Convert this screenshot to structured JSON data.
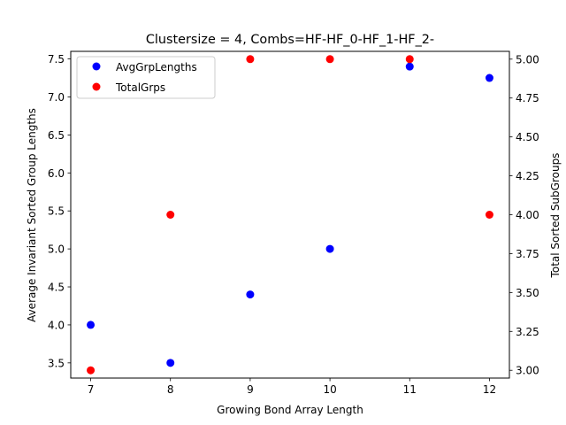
{
  "chart_data": {
    "type": "scatter",
    "title": "Clustersize = 4, Combs=HF-HF_0-HF_1-HF_2-",
    "xlabel": "Growing Bond Array Length",
    "ylabel": "Average Invariant Sorted Group Lengths",
    "y2label": "Total Sorted SubGroups",
    "xlim": [
      6.75,
      12.25
    ],
    "ylim": [
      3.3,
      7.6
    ],
    "y2lim": [
      2.95,
      5.05
    ],
    "xticks": [
      7,
      8,
      9,
      10,
      11,
      12
    ],
    "xtick_labels": [
      "7",
      "8",
      "9",
      "10",
      "11",
      "12"
    ],
    "yticks": [
      3.5,
      4.0,
      4.5,
      5.0,
      5.5,
      6.0,
      6.5,
      7.0,
      7.5
    ],
    "ytick_labels": [
      "3.5",
      "4.0",
      "4.5",
      "5.0",
      "5.5",
      "6.0",
      "6.5",
      "7.0",
      "7.5"
    ],
    "y2ticks": [
      3.0,
      3.25,
      3.5,
      3.75,
      4.0,
      4.25,
      4.5,
      4.75,
      5.0
    ],
    "y2tick_labels": [
      "3.00",
      "3.25",
      "3.50",
      "3.75",
      "4.00",
      "4.25",
      "4.50",
      "4.75",
      "5.00"
    ],
    "legend_position": "top-left",
    "grid": false,
    "series": [
      {
        "name": "AvgGrpLengths",
        "axis": "left",
        "color": "#0000ff",
        "x": [
          7,
          8,
          9,
          10,
          11,
          12
        ],
        "y": [
          4.0,
          3.5,
          4.4,
          5.0,
          7.4,
          7.25
        ]
      },
      {
        "name": "TotalGrps",
        "axis": "right",
        "color": "#ff0000",
        "x": [
          7,
          8,
          9,
          10,
          11,
          12
        ],
        "y": [
          3,
          4,
          5,
          5,
          5,
          4
        ]
      }
    ]
  }
}
